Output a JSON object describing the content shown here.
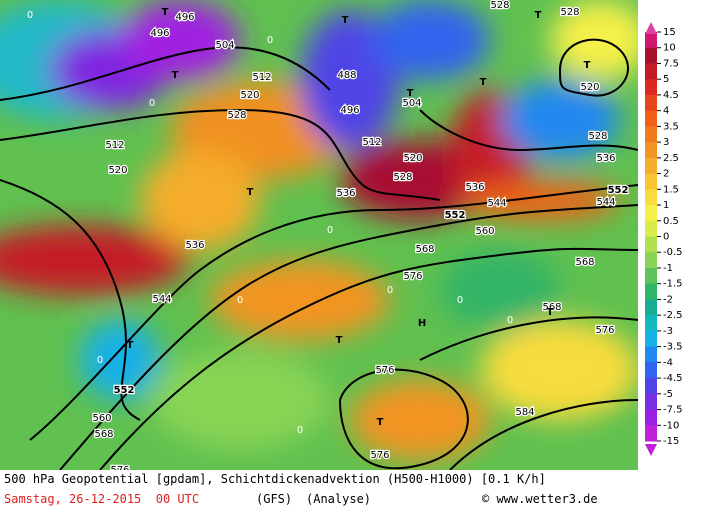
{
  "map": {
    "contour_labels": [
      "496",
      "496",
      "504",
      "512",
      "520",
      "528",
      "488",
      "496",
      "504",
      "512",
      "520",
      "528",
      "536",
      "536",
      "544",
      "552",
      "560",
      "568",
      "576",
      "552",
      "544",
      "536",
      "528",
      "520",
      "528",
      "528",
      "512",
      "520",
      "536",
      "544",
      "552",
      "560",
      "568",
      "576",
      "576",
      "576",
      "584",
      "568",
      "576",
      "568",
      "T",
      "T",
      "T",
      "T",
      "T",
      "T",
      "T",
      "T",
      "T",
      "T",
      "T",
      "T",
      "H",
      "0",
      "0",
      "0",
      "0",
      "0",
      "0",
      "0",
      "0",
      "0",
      "0"
    ]
  },
  "legend": {
    "levels": [
      15,
      10,
      7.5,
      5,
      4.5,
      4,
      3.5,
      3,
      2.5,
      2,
      1.5,
      1,
      0.5,
      0,
      -0.5,
      -1,
      -1.5,
      -2,
      -2.5,
      -3,
      -3.5,
      -4,
      -4.5,
      -5,
      -7.5,
      -10,
      -15
    ],
    "colors": [
      "#d01870",
      "#a81030",
      "#c41a28",
      "#dc2820",
      "#e8441a",
      "#f06018",
      "#f07a1c",
      "#f29424",
      "#f5ac2c",
      "#f8c434",
      "#f8dc3c",
      "#f6f048",
      "#d8ec4c",
      "#b0e050",
      "#88d454",
      "#5cc458",
      "#30b468",
      "#18ac90",
      "#10b8c0",
      "#18b0e8",
      "#2088f0",
      "#3064ee",
      "#5044e6",
      "#7830e0",
      "#9c20e0",
      "#c020d8"
    ]
  },
  "footer": {
    "line1": "500 hPa Geopotential [gpdam], Schichtdickenadvektion (H500-H1000) [0.1 K/h]",
    "date": "Samstag, 26-12-2015  00 UTC",
    "model": "(GFS)",
    "kind": "(Analyse)",
    "credit": "© www.wetter3.de"
  }
}
